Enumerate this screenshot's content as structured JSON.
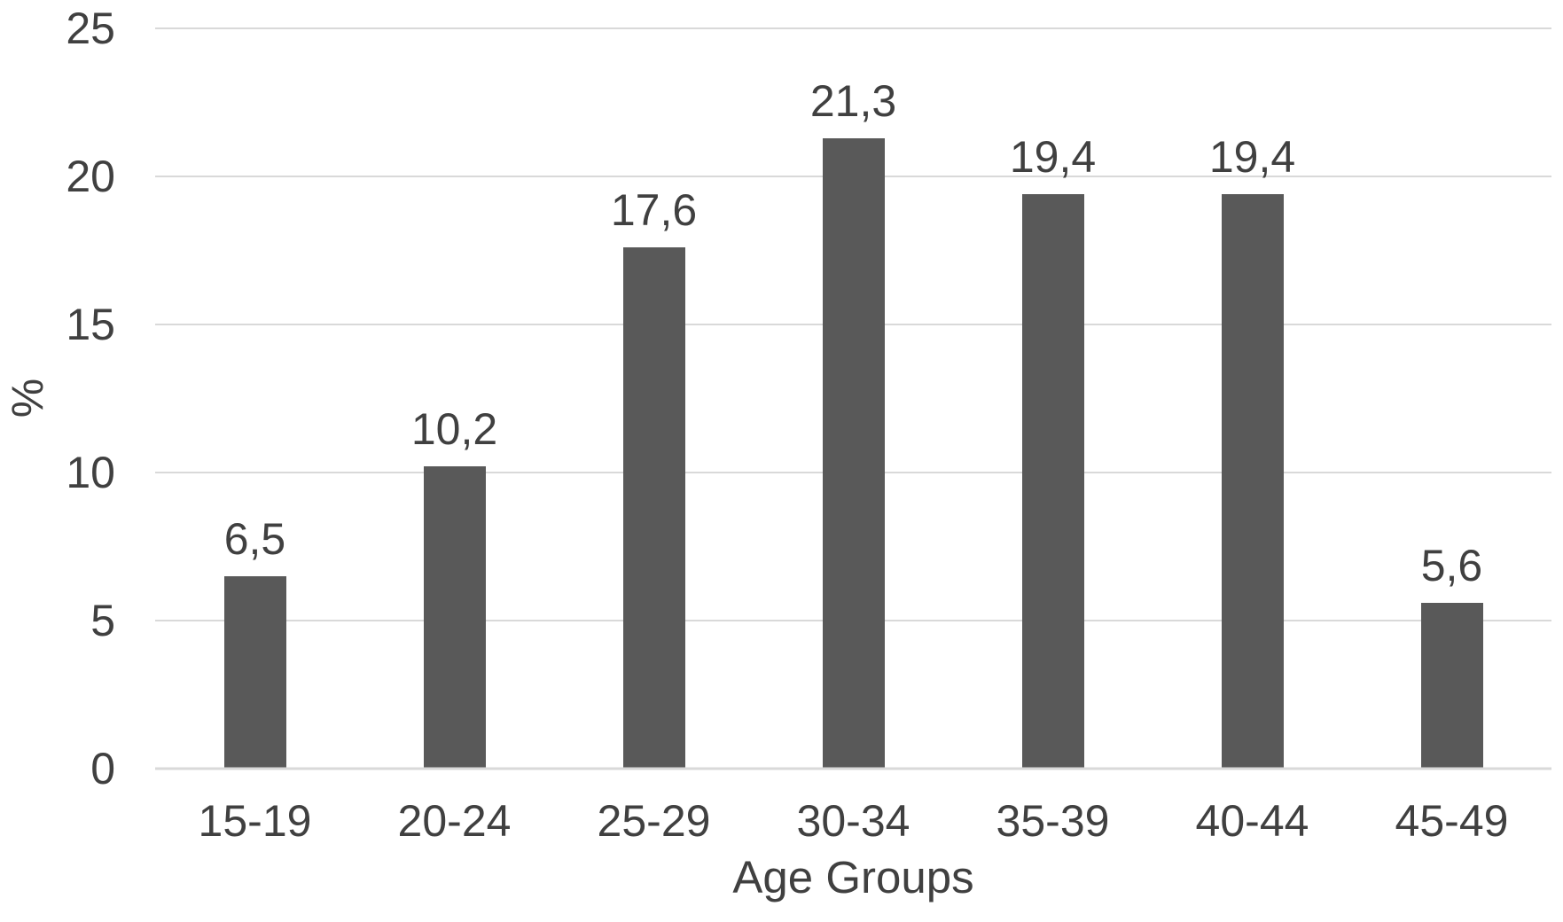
{
  "chart_data": {
    "type": "bar",
    "title": "",
    "xlabel": "Age Groups",
    "ylabel": "%",
    "categories": [
      "15-19",
      "20-24",
      "25-29",
      "30-34",
      "35-39",
      "40-44",
      "45-49"
    ],
    "values": [
      6.5,
      10.2,
      17.6,
      21.3,
      19.4,
      19.4,
      5.6
    ],
    "data_labels": [
      "6,5",
      "10,2",
      "17,6",
      "21,3",
      "19,4",
      "19,4",
      "5,6"
    ],
    "ylim": [
      0,
      25
    ],
    "yticks": [
      0,
      5,
      10,
      15,
      20,
      25
    ],
    "grid": true,
    "legend": false,
    "decimal_separator": ",",
    "colors": {
      "bar": "#595959",
      "gridline": "#d9d9d9",
      "axis_line": "#d9d9d9",
      "text": "#404040",
      "background": "#ffffff"
    }
  }
}
